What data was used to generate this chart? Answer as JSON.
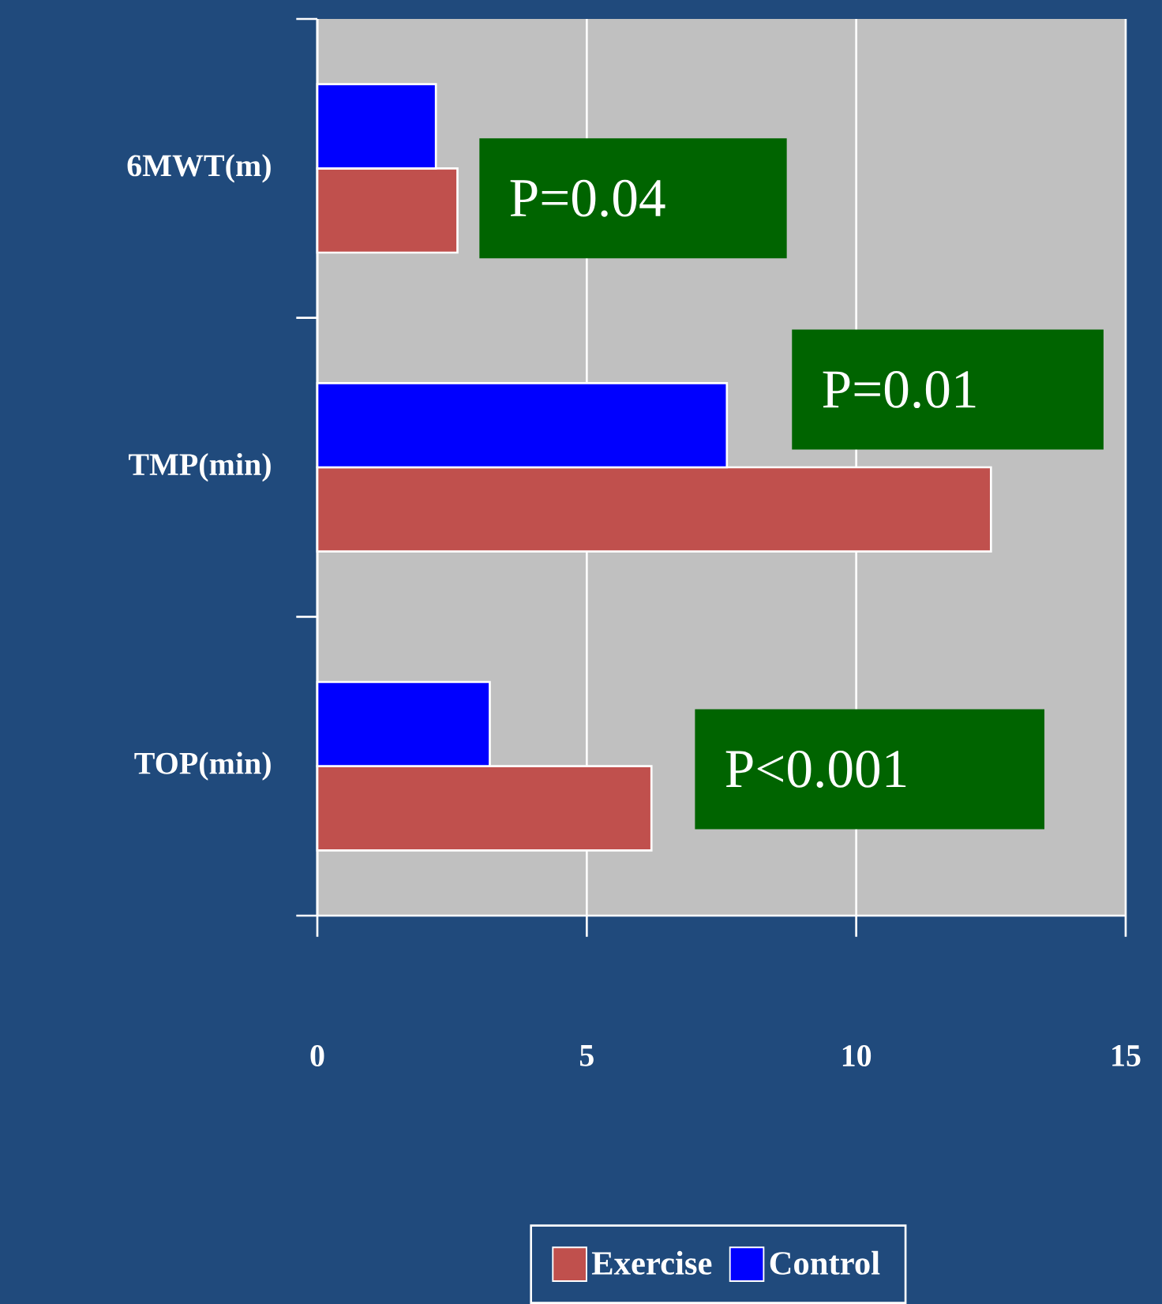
{
  "chart_data": {
    "type": "bar",
    "orientation": "horizontal",
    "categories": [
      "6MWT(m)",
      "TMP(min)",
      "TOP(min)"
    ],
    "series": [
      {
        "name": "Exercise",
        "color": "#c0504d",
        "values": [
          2.6,
          12.5,
          6.2
        ]
      },
      {
        "name": "Control",
        "color": "#0000ff",
        "values": [
          2.2,
          7.6,
          3.2
        ]
      }
    ],
    "xlim": [
      0,
      15
    ],
    "xticks": [
      0,
      5,
      10,
      15
    ],
    "grid": "x",
    "legend": "bottom",
    "annotations": [
      "P=0.04",
      "P=0.01",
      "P<0.001"
    ]
  }
}
